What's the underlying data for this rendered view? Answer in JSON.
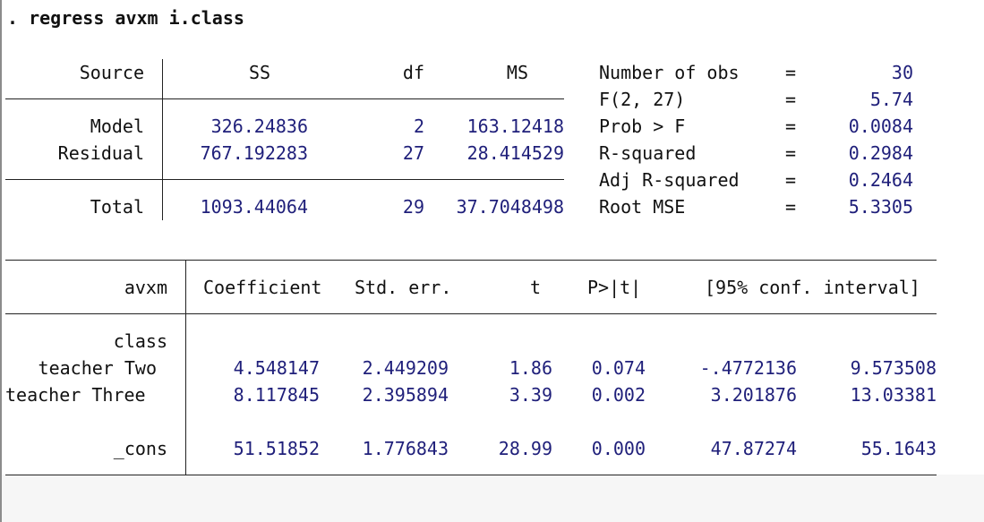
{
  "command": {
    "prompt": ". ",
    "text": "regress avxm i.class"
  },
  "anova": {
    "headers": {
      "source": "Source",
      "ss": "SS",
      "df": "df",
      "ms": "MS"
    },
    "rows": [
      {
        "source": "Model",
        "ss": "326.24836",
        "df": "2",
        "ms": "163.12418"
      },
      {
        "source": "Residual",
        "ss": "767.192283",
        "df": "27",
        "ms": "28.414529"
      },
      {
        "source": "Total",
        "ss": "1093.44064",
        "df": "29",
        "ms": "37.7048498"
      }
    ]
  },
  "stats": [
    {
      "label": "Number of obs",
      "eq": "=",
      "value": "30"
    },
    {
      "label": "F(2, 27)",
      "eq": "=",
      "value": "5.74"
    },
    {
      "label": "Prob > F",
      "eq": "=",
      "value": "0.0084"
    },
    {
      "label": "R-squared",
      "eq": "=",
      "value": "0.2984"
    },
    {
      "label": "Adj R-squared",
      "eq": "=",
      "value": "0.2464"
    },
    {
      "label": "Root MSE",
      "eq": "=",
      "value": "5.3305"
    }
  ],
  "coef": {
    "headers": {
      "var": "avxm",
      "coef": "Coefficient",
      "se": "Std. err.",
      "t": "t",
      "p": "P>|t|",
      "ci": "[95% conf. interval]"
    },
    "group_label": "class",
    "rows": [
      {
        "name": "teacher Two",
        "coef": "4.548147",
        "se": "2.449209",
        "t": "1.86",
        "p": "0.074",
        "lo": "-.4772136",
        "hi": "9.573508"
      },
      {
        "name": "teacher Three",
        "coef": "8.117845",
        "se": "2.395894",
        "t": "3.39",
        "p": "0.002",
        "lo": "3.201876",
        "hi": "13.03381"
      },
      {
        "name": "_cons",
        "coef": "51.51852",
        "se": "1.776843",
        "t": "28.99",
        "p": "0.000",
        "lo": "47.87274",
        "hi": "55.1643"
      }
    ]
  }
}
